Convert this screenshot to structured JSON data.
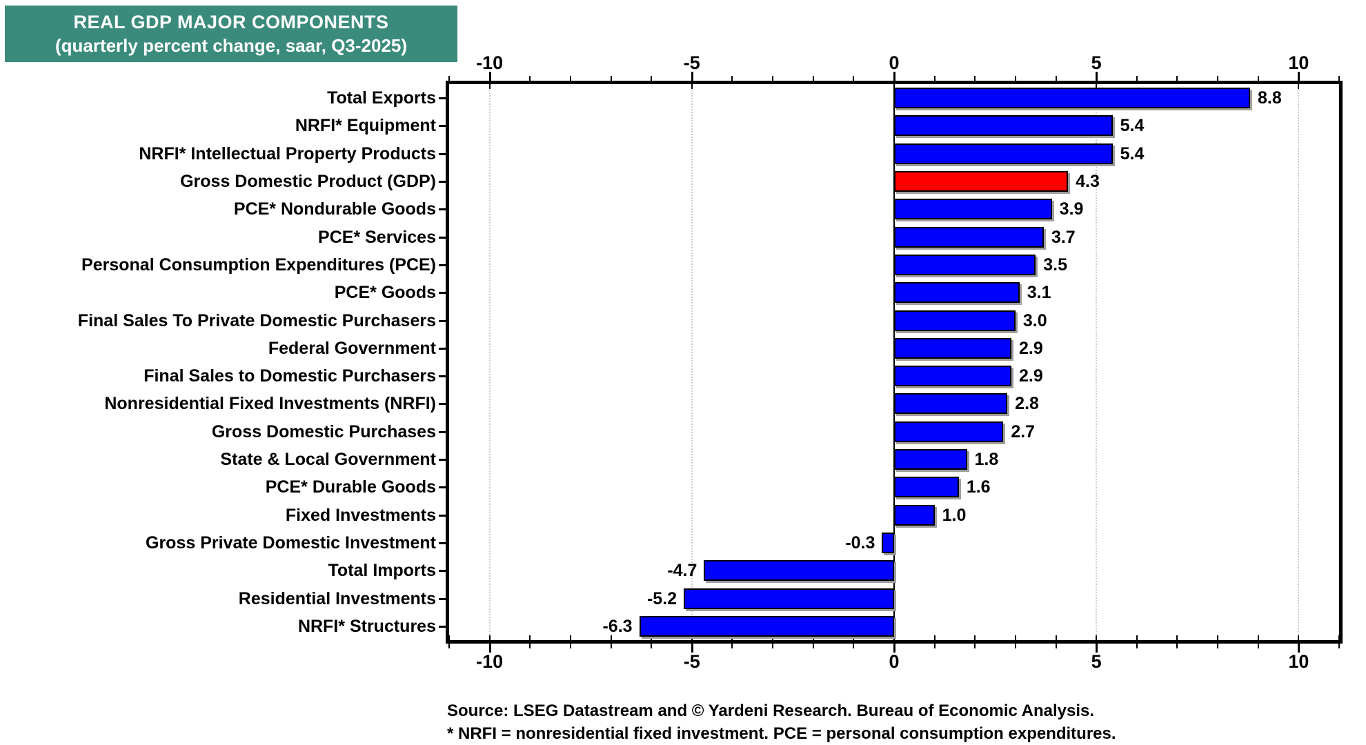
{
  "title": {
    "line1": "REAL GDP MAJOR COMPONENTS",
    "line2": "(quarterly percent change, saar, Q3-2025)"
  },
  "source": {
    "line1": "Source: LSEG Datastream and © Yardeni Research. Bureau of Economic Analysis.",
    "line2": "* NRFI = nonresidential fixed investment. PCE = personal consumption expenditures."
  },
  "chart_data": {
    "type": "bar",
    "orientation": "horizontal",
    "title": "REAL GDP MAJOR COMPONENTS (quarterly percent change, saar, Q3-2025)",
    "categories": [
      "Total Exports",
      "NRFI* Equipment",
      "NRFI* Intellectual Property Products",
      "Gross Domestic Product (GDP)",
      "PCE* Nondurable Goods",
      "PCE* Services",
      "Personal Consumption Expenditures (PCE)",
      "PCE* Goods",
      "Final Sales To Private Domestic Purchasers",
      "Federal Government",
      "Final Sales to Domestic Purchasers",
      "Nonresidential Fixed Investments (NRFI)",
      "Gross Domestic Purchases",
      "State & Local Government",
      "PCE* Durable Goods",
      "Fixed Investments",
      "Gross Private Domestic Investment",
      "Total Imports",
      "Residential Investments",
      "NRFI* Structures"
    ],
    "values": [
      8.8,
      5.4,
      5.4,
      4.3,
      3.9,
      3.7,
      3.5,
      3.1,
      3.0,
      2.9,
      2.9,
      2.8,
      2.7,
      1.8,
      1.6,
      1.0,
      -0.3,
      -4.7,
      -5.2,
      -6.3
    ],
    "value_labels": [
      "8.8",
      "5.4",
      "5.4",
      "4.3",
      "3.9",
      "3.7",
      "3.5",
      "3.1",
      "3.0",
      "2.9",
      "2.9",
      "2.8",
      "2.7",
      "1.8",
      "1.6",
      "1.0",
      "-0.3",
      "-4.7",
      "-5.2",
      "-6.3"
    ],
    "highlight": {
      "index": 3,
      "category": "Gross Domestic Product (GDP)",
      "color": "#FF0000"
    },
    "bar_color": "#0000FF",
    "xlim": [
      -11,
      11
    ],
    "x_major_ticks": [
      -10,
      -5,
      0,
      5,
      10
    ],
    "x_major_tick_labels": [
      "-10",
      "-5",
      "0",
      "5",
      "10"
    ],
    "x_minor_tick_step": 1,
    "gridlines": {
      "dotted_at": [
        -10,
        -5,
        5,
        10
      ],
      "solid_at": [
        0
      ],
      "dotted_color": "#CCCCCC"
    },
    "axes_shown": [
      "top",
      "bottom"
    ],
    "legend": "none",
    "value_label_position": "end of bar"
  },
  "colors": {
    "title_bg": "#3B8B7C",
    "title_text": "#FFFFFF",
    "bar_blue": "#0000FF",
    "bar_red": "#FF0000",
    "grid_dotted": "#CCCCCC",
    "text": "#000000",
    "plot_border": "#000000"
  }
}
